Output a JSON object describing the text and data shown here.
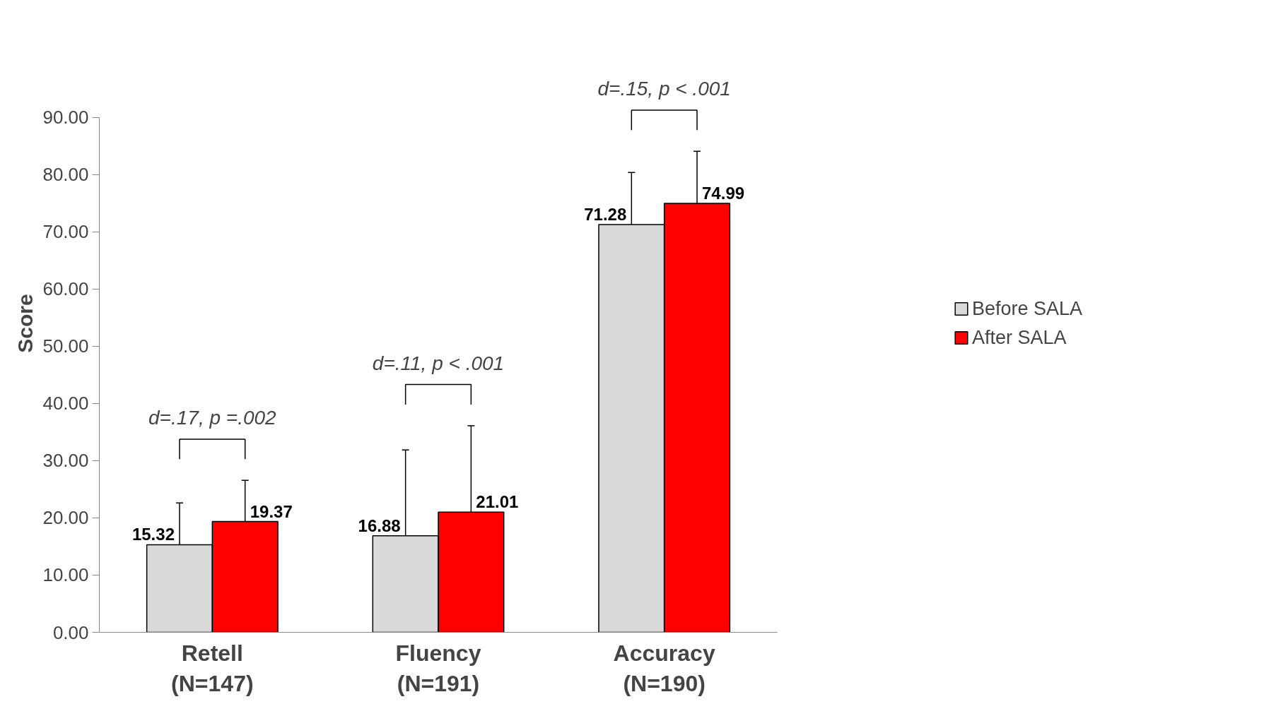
{
  "chart_data": {
    "type": "bar",
    "ylabel": "Score",
    "categories": [
      "Retell\n(N=147)",
      "Fluency\n(N=191)",
      "Accuracy\n(N=190)"
    ],
    "series": [
      {
        "name": "Before SALA",
        "color": "#d9d9d9",
        "values": [
          15.32,
          16.88,
          71.28
        ],
        "errors": [
          7.3,
          15.0,
          9.1
        ]
      },
      {
        "name": "After SALA",
        "color": "#ff0000",
        "values": [
          19.37,
          21.01,
          74.99
        ],
        "errors": [
          7.2,
          15.1,
          9.1
        ]
      }
    ],
    "ylim": [
      0,
      90
    ],
    "yticks": [
      {
        "value": 0,
        "label": "0.00"
      },
      {
        "value": 10,
        "label": "10.00"
      },
      {
        "value": 20,
        "label": "20.00"
      },
      {
        "value": 30,
        "label": "30.00"
      },
      {
        "value": 40,
        "label": "40.00"
      },
      {
        "value": 50,
        "label": "50.00"
      },
      {
        "value": 60,
        "label": "60.00"
      },
      {
        "value": 70,
        "label": "70.00"
      },
      {
        "value": 80,
        "label": "80.00"
      },
      {
        "value": 90,
        "label": "90.00"
      }
    ],
    "annotations": [
      "d=.17, p =.002",
      "d=.11, p < .001",
      "d=.15, p < .001"
    ],
    "data_labels": true,
    "grid": false,
    "legend": "right"
  }
}
